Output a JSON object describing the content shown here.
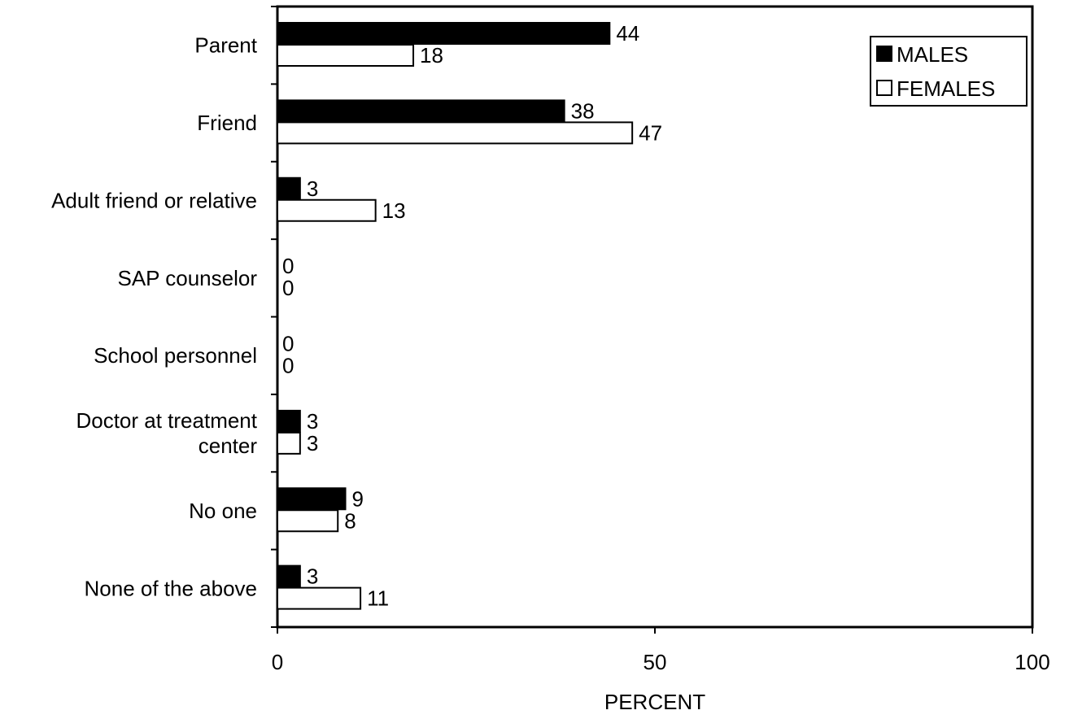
{
  "chart_data": {
    "type": "bar",
    "orientation": "horizontal",
    "categories": [
      [
        "Parent"
      ],
      [
        "Friend"
      ],
      [
        "Adult friend or relative"
      ],
      [
        "SAP counselor"
      ],
      [
        "School personnel"
      ],
      [
        "Doctor at treatment",
        "center"
      ],
      [
        "No one"
      ],
      [
        "None of the above"
      ]
    ],
    "series": [
      {
        "name": "MALES",
        "color": "#000000",
        "fill": "solid",
        "values": [
          44,
          38,
          3,
          0,
          0,
          3,
          9,
          3
        ]
      },
      {
        "name": "FEMALES",
        "color": "#ffffff",
        "fill": "outline",
        "values": [
          18,
          47,
          13,
          0,
          0,
          3,
          8,
          11
        ]
      }
    ],
    "xlabel": "PERCENT",
    "ylabel": "",
    "title": "",
    "xlim": [
      0,
      100
    ],
    "xticks": [
      0,
      50,
      100
    ],
    "grid": false,
    "legend": "top-right",
    "data_labels": true
  }
}
